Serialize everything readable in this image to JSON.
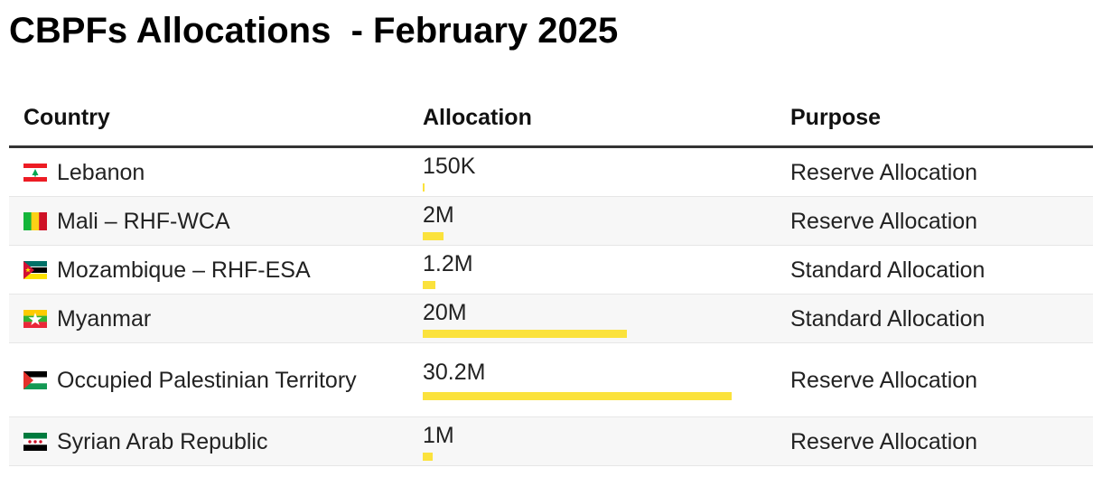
{
  "title": "CBPFs Allocations  - February 2025",
  "headers": {
    "country": "Country",
    "allocation": "Allocation",
    "purpose": "Purpose"
  },
  "colors": {
    "bar": "#fbe23c",
    "header_rule": "#333333"
  },
  "chart_data": {
    "type": "table",
    "columns": [
      "Country",
      "Allocation",
      "Purpose"
    ],
    "scale_max": 30.2,
    "unit": "M",
    "rows": [
      {
        "country": "Lebanon",
        "flag": "lebanon-flag-icon",
        "allocation_label": "150K",
        "allocation_value": 0.15,
        "purpose": "Reserve Allocation"
      },
      {
        "country": "Mali – RHF-WCA",
        "flag": "mali-flag-icon",
        "allocation_label": "2M",
        "allocation_value": 2,
        "purpose": "Reserve Allocation"
      },
      {
        "country": "Mozambique – RHF-ESA",
        "flag": "mozambique-flag-icon",
        "allocation_label": "1.2M",
        "allocation_value": 1.2,
        "purpose": "Standard Allocation"
      },
      {
        "country": "Myanmar",
        "flag": "myanmar-flag-icon",
        "allocation_label": "20M",
        "allocation_value": 20,
        "purpose": "Standard Allocation"
      },
      {
        "country": "Occupied Palestinian Territory",
        "flag": "palestine-flag-icon",
        "allocation_label": "30.2M",
        "allocation_value": 30.2,
        "purpose": "Reserve Allocation"
      },
      {
        "country": "Syrian Arab Republic",
        "flag": "syria-flag-icon",
        "allocation_label": "1M",
        "allocation_value": 1,
        "purpose": "Reserve Allocation"
      }
    ]
  }
}
